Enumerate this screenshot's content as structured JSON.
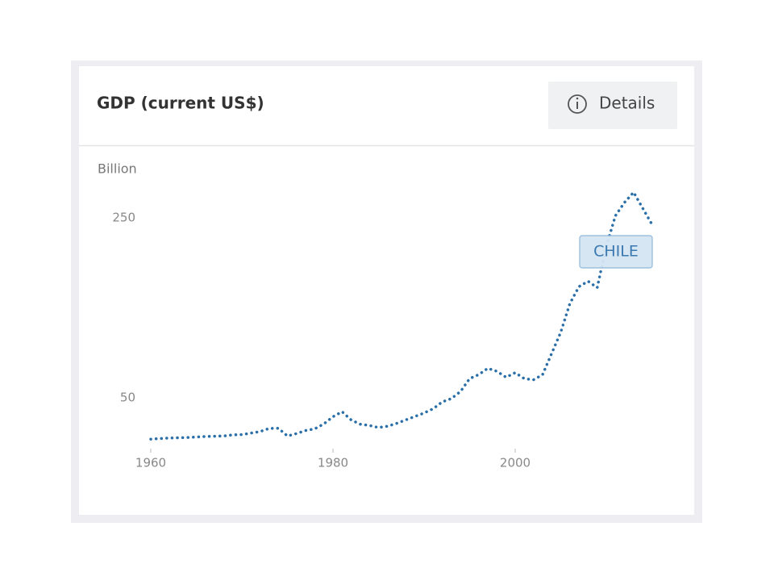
{
  "chart_data": {
    "type": "line",
    "title": "GDP (current US$)",
    "button": "Details",
    "y_axis_label": "Billion",
    "x": [
      1960,
      1961,
      1962,
      1963,
      1964,
      1965,
      1966,
      1967,
      1968,
      1969,
      1970,
      1971,
      1972,
      1973,
      1974,
      1975,
      1976,
      1977,
      1978,
      1979,
      1980,
      1981,
      1982,
      1983,
      1984,
      1985,
      1986,
      1987,
      1988,
      1989,
      1990,
      1991,
      1992,
      1993,
      1994,
      1995,
      1996,
      1997,
      1998,
      1999,
      2000,
      2001,
      2002,
      2003,
      2004,
      2005,
      2006,
      2007,
      2008,
      2009,
      2010,
      2011,
      2012,
      2013,
      2014,
      2015
    ],
    "series": [
      {
        "name": "CHILE",
        "color": "#2a6fa8",
        "values": [
          4.1,
          4.7,
          5.3,
          5.6,
          5.9,
          6.4,
          7.0,
          7.3,
          7.6,
          8.8,
          9.1,
          10.8,
          12.5,
          16.0,
          16.2,
          7.6,
          10.3,
          13.7,
          15.6,
          21.0,
          29.0,
          34.6,
          25.3,
          20.7,
          19.2,
          17.0,
          18.4,
          21.7,
          25.5,
          29.3,
          33.1,
          37.9,
          45.5,
          49.2,
          57.1,
          71.3,
          75.8,
          82.8,
          79.4,
          72.9,
          77.9,
          71.3,
          70.0,
          75.6,
          99.2,
          122.9,
          154.7,
          173.6,
          179.6,
          172.4,
          218.5,
          252.3,
          267.1,
          278.4,
          260.6,
          243.0
        ]
      }
    ],
    "xlim": [
      1960,
      2015
    ],
    "xticks": [
      1960,
      1980,
      2000
    ],
    "ylim": [
      0,
      280
    ],
    "yticks": [
      50,
      250
    ],
    "grid": false
  }
}
